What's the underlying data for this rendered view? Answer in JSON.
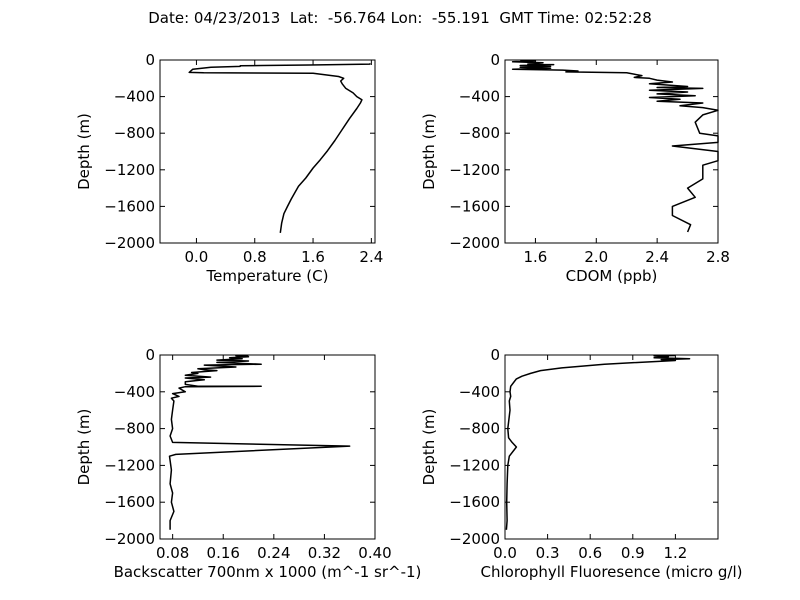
{
  "figure": {
    "title": "Date: 04/23/2013  Lat:  -56.764 Lon:  -55.191  GMT Time: 02:52:28"
  },
  "chart_data": [
    {
      "type": "line",
      "name": "temperature",
      "xlabel": "Temperature (C)",
      "ylabel": "Depth (m)",
      "xlim": [
        -0.5,
        2.45
      ],
      "ylim": [
        -2000,
        0
      ],
      "xticks": [
        0.0,
        0.8,
        1.6,
        2.4
      ],
      "xtick_labels": [
        "0.0",
        "0.8",
        "1.6",
        "2.4"
      ],
      "yticks": [
        0,
        -400,
        -800,
        -1200,
        -1600,
        -2000
      ],
      "ytick_labels": [
        "0",
        "−400",
        "−800",
        "−1200",
        "−1600",
        "−2000"
      ],
      "grid": false,
      "series": [
        {
          "color": "#000000",
          "points": [
            [
              2.38,
              -35
            ],
            [
              2.38,
              -45
            ],
            [
              1.55,
              -55
            ],
            [
              0.9,
              -60
            ],
            [
              0.6,
              -62
            ],
            [
              0.6,
              -70
            ],
            [
              0.2,
              -80
            ],
            [
              -0.05,
              -100
            ],
            [
              -0.1,
              -135
            ],
            [
              0.1,
              -140
            ],
            [
              0.8,
              -142
            ],
            [
              1.6,
              -145
            ],
            [
              1.95,
              -180
            ],
            [
              2.02,
              -200
            ],
            [
              1.98,
              -230
            ],
            [
              2.0,
              -260
            ],
            [
              2.05,
              -310
            ],
            [
              2.15,
              -360
            ],
            [
              2.2,
              -400
            ],
            [
              2.27,
              -435
            ],
            [
              2.25,
              -470
            ],
            [
              2.2,
              -530
            ],
            [
              2.1,
              -640
            ],
            [
              2.0,
              -760
            ],
            [
              1.9,
              -880
            ],
            [
              1.8,
              -990
            ],
            [
              1.7,
              -1090
            ],
            [
              1.6,
              -1180
            ],
            [
              1.5,
              -1290
            ],
            [
              1.4,
              -1380
            ],
            [
              1.35,
              -1450
            ],
            [
              1.3,
              -1520
            ],
            [
              1.25,
              -1600
            ],
            [
              1.2,
              -1680
            ],
            [
              1.17,
              -1780
            ],
            [
              1.15,
              -1890
            ]
          ]
        }
      ]
    },
    {
      "type": "line",
      "name": "cdom",
      "xlabel": "CDOM (ppb)",
      "ylabel": "Depth (m)",
      "xlim": [
        1.4,
        2.8
      ],
      "ylim": [
        -2000,
        0
      ],
      "xticks": [
        1.6,
        2.0,
        2.4,
        2.8
      ],
      "xtick_labels": [
        "1.6",
        "2.0",
        "2.4",
        "2.8"
      ],
      "yticks": [
        0,
        -400,
        -800,
        -1200,
        -1600,
        -2000
      ],
      "ytick_labels": [
        "0",
        "−400",
        "−800",
        "−1200",
        "−1600",
        "−2000"
      ],
      "grid": false,
      "series": [
        {
          "color": "#000000",
          "points": [
            [
              1.5,
              -5
            ],
            [
              1.6,
              -10
            ],
            [
              1.45,
              -20
            ],
            [
              1.65,
              -30
            ],
            [
              1.55,
              -45
            ],
            [
              1.72,
              -50
            ],
            [
              1.5,
              -60
            ],
            [
              1.7,
              -70
            ],
            [
              1.5,
              -80
            ],
            [
              1.7,
              -90
            ],
            [
              1.45,
              -100
            ],
            [
              1.78,
              -110
            ],
            [
              1.88,
              -120
            ],
            [
              1.8,
              -130
            ],
            [
              2.2,
              -140
            ],
            [
              2.3,
              -170
            ],
            [
              2.25,
              -190
            ],
            [
              2.35,
              -200
            ],
            [
              2.4,
              -220
            ],
            [
              2.5,
              -240
            ],
            [
              2.35,
              -260
            ],
            [
              2.6,
              -290
            ],
            [
              2.4,
              -300
            ],
            [
              2.7,
              -310
            ],
            [
              2.35,
              -330
            ],
            [
              2.6,
              -350
            ],
            [
              2.4,
              -370
            ],
            [
              2.65,
              -390
            ],
            [
              2.35,
              -410
            ],
            [
              2.55,
              -430
            ],
            [
              2.4,
              -450
            ],
            [
              2.7,
              -470
            ],
            [
              2.55,
              -500
            ],
            [
              2.7,
              -520
            ],
            [
              2.8,
              -550
            ],
            [
              2.7,
              -600
            ],
            [
              2.65,
              -680
            ],
            [
              2.68,
              -800
            ],
            [
              2.8,
              -830
            ],
            [
              2.8,
              -900
            ],
            [
              2.5,
              -940
            ],
            [
              2.8,
              -1000
            ],
            [
              2.8,
              -1100
            ],
            [
              2.7,
              -1150
            ],
            [
              2.7,
              -1300
            ],
            [
              2.6,
              -1400
            ],
            [
              2.65,
              -1500
            ],
            [
              2.5,
              -1600
            ],
            [
              2.5,
              -1700
            ],
            [
              2.62,
              -1800
            ],
            [
              2.6,
              -1880
            ]
          ]
        }
      ]
    },
    {
      "type": "line",
      "name": "backscatter",
      "xlabel": "Backscatter 700nm x 1000 (m^-1 sr^-1)",
      "ylabel": "Depth (m)",
      "xlim": [
        0.06,
        0.4
      ],
      "ylim": [
        -2000,
        0
      ],
      "xticks": [
        0.08,
        0.16,
        0.24,
        0.32,
        0.4
      ],
      "xtick_labels": [
        "0.08",
        "0.16",
        "0.24",
        "0.32",
        "0.40"
      ],
      "yticks": [
        0,
        -400,
        -800,
        -1200,
        -1600,
        -2000
      ],
      "ytick_labels": [
        "0",
        "−400",
        "−800",
        "−1200",
        "−1600",
        "−2000"
      ],
      "grid": false,
      "series": [
        {
          "color": "#000000",
          "points": [
            [
              0.2,
              -5
            ],
            [
              0.18,
              -10
            ],
            [
              0.2,
              -20
            ],
            [
              0.17,
              -30
            ],
            [
              0.19,
              -40
            ],
            [
              0.15,
              -55
            ],
            [
              0.2,
              -65
            ],
            [
              0.15,
              -80
            ],
            [
              0.22,
              -100
            ],
            [
              0.13,
              -110
            ],
            [
              0.18,
              -130
            ],
            [
              0.12,
              -150
            ],
            [
              0.13,
              -160
            ],
            [
              0.15,
              -170
            ],
            [
              0.11,
              -190
            ],
            [
              0.12,
              -200
            ],
            [
              0.1,
              -220
            ],
            [
              0.14,
              -240
            ],
            [
              0.1,
              -250
            ],
            [
              0.13,
              -270
            ],
            [
              0.1,
              -290
            ],
            [
              0.1,
              -320
            ],
            [
              0.12,
              -340
            ],
            [
              0.22,
              -340
            ],
            [
              0.1,
              -345
            ],
            [
              0.09,
              -360
            ],
            [
              0.1,
              -400
            ],
            [
              0.08,
              -420
            ],
            [
              0.09,
              -450
            ],
            [
              0.078,
              -470
            ],
            [
              0.082,
              -500
            ],
            [
              0.08,
              -600
            ],
            [
              0.078,
              -700
            ],
            [
              0.08,
              -800
            ],
            [
              0.076,
              -880
            ],
            [
              0.08,
              -950
            ],
            [
              0.36,
              -990
            ],
            [
              0.085,
              -1080
            ],
            [
              0.075,
              -1100
            ],
            [
              0.078,
              -1250
            ],
            [
              0.076,
              -1400
            ],
            [
              0.08,
              -1500
            ],
            [
              0.078,
              -1600
            ],
            [
              0.082,
              -1700
            ],
            [
              0.076,
              -1800
            ],
            [
              0.076,
              -1900
            ]
          ]
        }
      ]
    },
    {
      "type": "line",
      "name": "chlorophyll",
      "xlabel": "Chlorophyll Fluoresence (micro g/l)",
      "ylabel": "Depth (m)",
      "xlim": [
        0.0,
        1.5
      ],
      "ylim": [
        -2000,
        0
      ],
      "xticks": [
        0.0,
        0.3,
        0.6,
        0.9,
        1.2
      ],
      "xtick_labels": [
        "0.0",
        "0.3",
        "0.6",
        "0.9",
        "1.2"
      ],
      "yticks": [
        0,
        -400,
        -800,
        -1200,
        -1600,
        -2000
      ],
      "ytick_labels": [
        "0",
        "−400",
        "−800",
        "−1200",
        "−1600",
        "−2000"
      ],
      "grid": false,
      "series": [
        {
          "color": "#000000",
          "points": [
            [
              1.2,
              -5
            ],
            [
              1.05,
              -10
            ],
            [
              1.15,
              -20
            ],
            [
              1.05,
              -30
            ],
            [
              1.3,
              -40
            ],
            [
              1.1,
              -50
            ],
            [
              1.2,
              -60
            ],
            [
              0.7,
              -100
            ],
            [
              0.4,
              -140
            ],
            [
              0.25,
              -170
            ],
            [
              0.18,
              -200
            ],
            [
              0.12,
              -230
            ],
            [
              0.08,
              -260
            ],
            [
              0.06,
              -300
            ],
            [
              0.04,
              -340
            ],
            [
              0.035,
              -400
            ],
            [
              0.04,
              -450
            ],
            [
              0.03,
              -500
            ],
            [
              0.035,
              -600
            ],
            [
              0.02,
              -800
            ],
            [
              0.025,
              -900
            ],
            [
              0.05,
              -950
            ],
            [
              0.08,
              -1000
            ],
            [
              0.03,
              -1100
            ],
            [
              0.02,
              -1200
            ],
            [
              0.015,
              -1400
            ],
            [
              0.012,
              -1600
            ],
            [
              0.015,
              -1800
            ],
            [
              0.01,
              -1900
            ]
          ]
        }
      ]
    }
  ]
}
